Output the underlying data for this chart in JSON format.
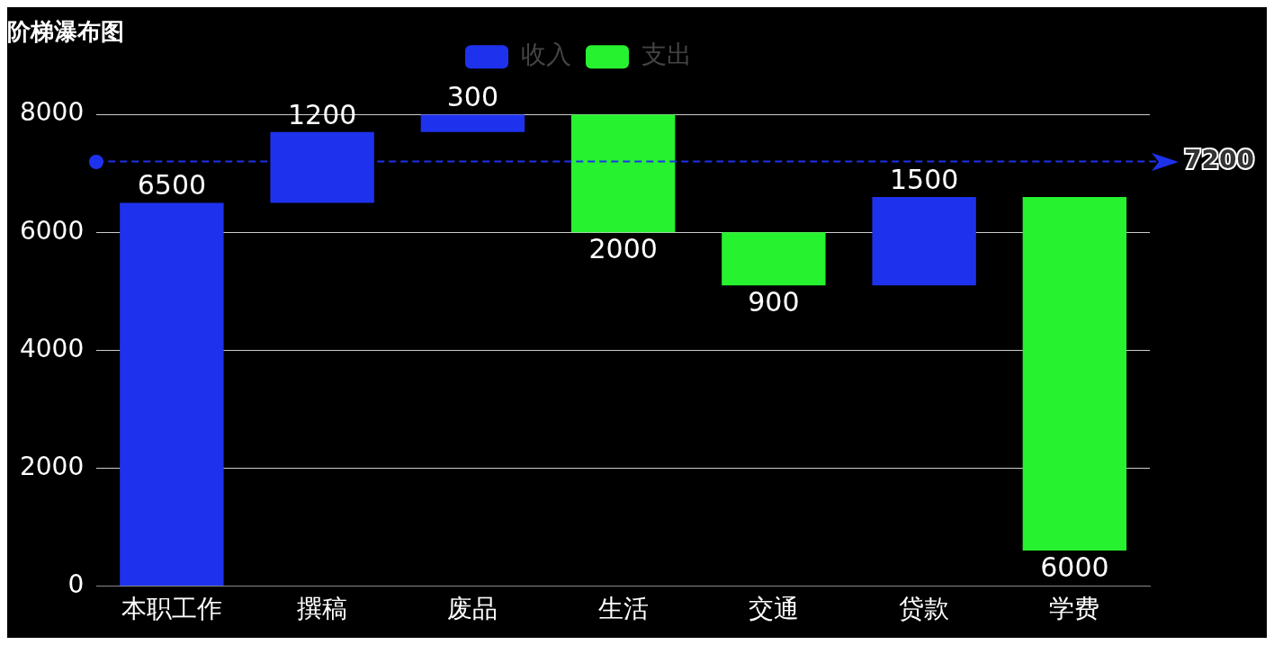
{
  "chart_data": {
    "type": "bar",
    "title": "阶梯瀑布图",
    "categories": [
      "本职工作",
      "撰稿",
      "废品",
      "生活",
      "交通",
      "贷款",
      "学费"
    ],
    "series": [
      {
        "name": "收入",
        "color": "#1e32ee",
        "values": [
          6500,
          1200,
          300,
          null,
          null,
          1500,
          null
        ],
        "base": [
          0,
          6500,
          7700,
          null,
          null,
          5100,
          null
        ]
      },
      {
        "name": "支出",
        "color": "#27f22f",
        "values": [
          null,
          null,
          null,
          2000,
          900,
          null,
          6000
        ],
        "base": [
          null,
          null,
          null,
          6000,
          5100,
          null,
          600
        ]
      }
    ],
    "ylim": [
      0,
      8000
    ],
    "yticks": [
      0,
      2000,
      4000,
      6000,
      8000
    ],
    "grid": "y",
    "legend": "top",
    "data_labels": true,
    "ref_lines": [
      {
        "axis": "y",
        "value": 7200,
        "label": "7200",
        "color": "#1e32ee",
        "line_style": "dashed"
      }
    ]
  }
}
